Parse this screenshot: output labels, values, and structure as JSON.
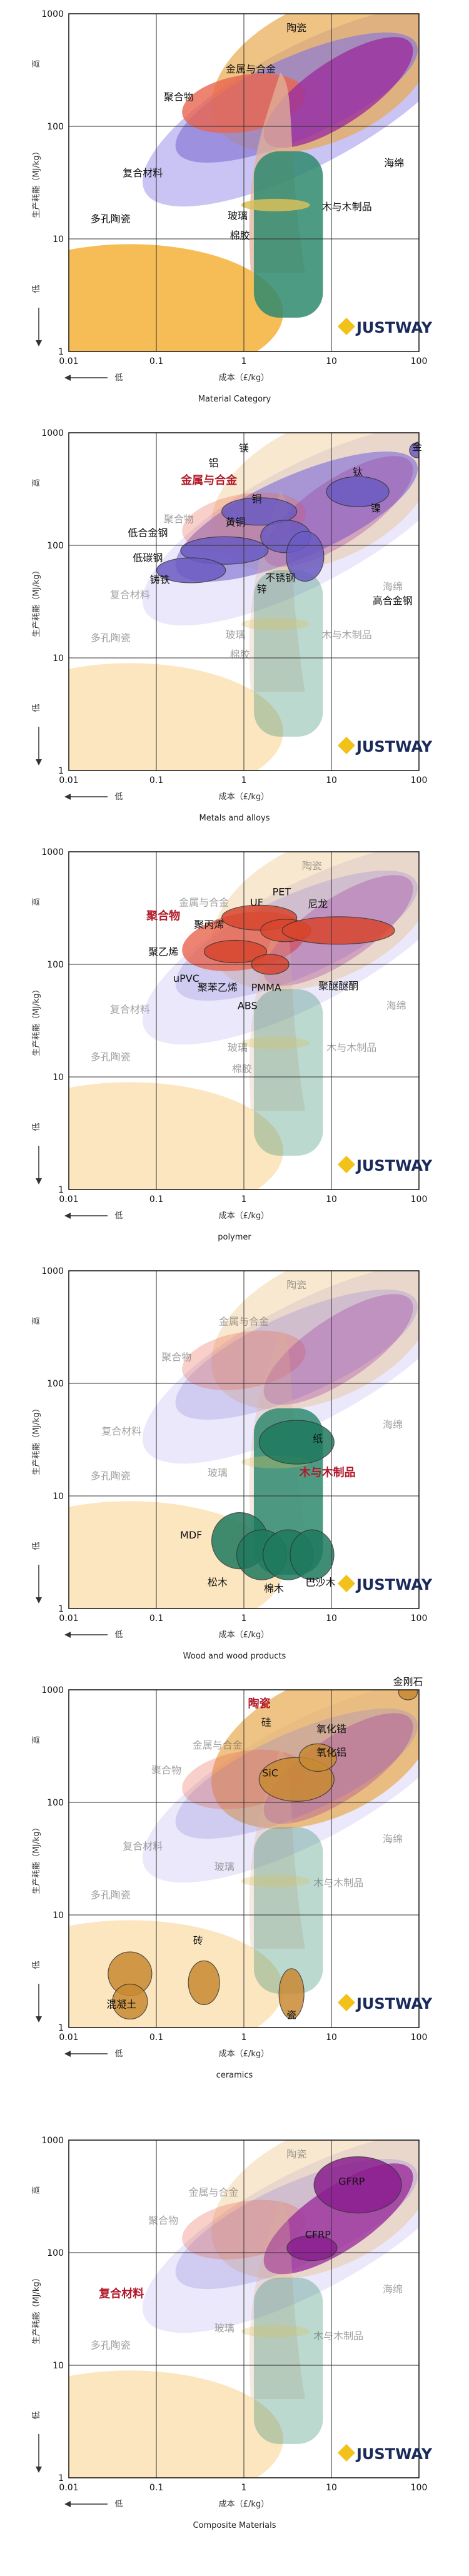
{
  "common": {
    "y_ticks": [
      "1000",
      "100",
      "10",
      "1"
    ],
    "x_ticks": [
      "0.01",
      "0.1",
      "1",
      "10",
      "100"
    ],
    "y_label": "生产耗能（MJ/kg）",
    "x_label": "成本（£/kg）",
    "high": "高",
    "low": "低",
    "brand": "JUSTWAY"
  },
  "colors": {
    "porous": "#f5b13a",
    "metal": "#8a7ad6",
    "polymer": "#e8654f",
    "ceramic": "#e8a94f",
    "composite": "#9b2f9e",
    "wood": "#2f8a6e",
    "rubber": "#e0b39a",
    "glass": "#d9c05a"
  },
  "chart_data": [
    {
      "type": "scatter",
      "caption": "Material Category",
      "highlight": "",
      "xlim": [
        0.01,
        100
      ],
      "ylim": [
        1,
        1000
      ],
      "x_scale": "log",
      "y_scale": "log",
      "labels": [
        {
          "text": "陶瓷",
          "x": 4,
          "y": 700
        },
        {
          "text": "金属与合金",
          "x": 1.2,
          "y": 300
        },
        {
          "text": "聚合物",
          "x": 0.18,
          "y": 170
        },
        {
          "text": "复合材料",
          "x": 0.07,
          "y": 36
        },
        {
          "text": "海绵",
          "x": 52,
          "y": 44
        },
        {
          "text": "玻璃",
          "x": 0.85,
          "y": 15
        },
        {
          "text": "木与木制品",
          "x": 15,
          "y": 18
        },
        {
          "text": "棉胶",
          "x": 0.9,
          "y": 10
        },
        {
          "text": "多孔陶瓷",
          "x": 0.03,
          "y": 14
        }
      ]
    },
    {
      "type": "scatter",
      "caption": "Metals and alloys",
      "highlight": "金属与合金",
      "xlim": [
        0.01,
        100
      ],
      "ylim": [
        1,
        1000
      ],
      "x_scale": "log",
      "y_scale": "log",
      "labels": [
        {
          "text": "金",
          "x": 95,
          "y": 700
        },
        {
          "text": "镁",
          "x": 1,
          "y": 680
        },
        {
          "text": "铝",
          "x": 0.45,
          "y": 500
        },
        {
          "text": "钛",
          "x": 20,
          "y": 420
        },
        {
          "text": "金属与合金",
          "x": 0.4,
          "y": 350
        },
        {
          "text": "铜",
          "x": 1.4,
          "y": 240
        },
        {
          "text": "镍",
          "x": 32,
          "y": 200
        },
        {
          "text": "黄铜",
          "x": 0.8,
          "y": 150
        },
        {
          "text": "低合金钢",
          "x": 0.08,
          "y": 120
        },
        {
          "text": "低碳钢",
          "x": 0.08,
          "y": 72
        },
        {
          "text": "铸铁",
          "x": 0.11,
          "y": 46
        },
        {
          "text": "不锈钢",
          "x": 2.6,
          "y": 48
        },
        {
          "text": "锌",
          "x": 1.6,
          "y": 38
        },
        {
          "text": "海绵",
          "x": 50,
          "y": 40
        },
        {
          "text": "高合金钢",
          "x": 50,
          "y": 30
        },
        {
          "text": "玻璃",
          "x": 0.8,
          "y": 15
        },
        {
          "text": "木与木制品",
          "x": 15,
          "y": 15
        },
        {
          "text": "棉胶",
          "x": 0.9,
          "y": 10
        },
        {
          "text": "多孔陶瓷",
          "x": 0.03,
          "y": 14
        },
        {
          "text": "复合材料",
          "x": 0.05,
          "y": 34
        },
        {
          "text": "聚合物",
          "x": 0.18,
          "y": 160
        }
      ]
    },
    {
      "type": "scatter",
      "caption": "polymer",
      "highlight": "聚合物",
      "xlim": [
        0.01,
        100
      ],
      "ylim": [
        1,
        1000
      ],
      "x_scale": "log",
      "y_scale": "log",
      "labels": [
        {
          "text": "PET",
          "x": 2.7,
          "y": 410
        },
        {
          "text": "金属与合金",
          "x": 0.35,
          "y": 330
        },
        {
          "text": "UF",
          "x": 1.4,
          "y": 330
        },
        {
          "text": "尼龙",
          "x": 7,
          "y": 320
        },
        {
          "text": "聚合物",
          "x": 0.12,
          "y": 250
        },
        {
          "text": "聚丙烯",
          "x": 0.4,
          "y": 210
        },
        {
          "text": "聚乙烯",
          "x": 0.12,
          "y": 120
        },
        {
          "text": "uPVC",
          "x": 0.22,
          "y": 70
        },
        {
          "text": "聚苯乙烯",
          "x": 0.5,
          "y": 58
        },
        {
          "text": "PMMA",
          "x": 1.8,
          "y": 58
        },
        {
          "text": "ABS",
          "x": 1.1,
          "y": 40
        },
        {
          "text": "聚醚醚酮",
          "x": 12,
          "y": 60
        },
        {
          "text": "海绵",
          "x": 55,
          "y": 40
        },
        {
          "text": "玻璃",
          "x": 0.85,
          "y": 17
        },
        {
          "text": "木与木制品",
          "x": 17,
          "y": 17
        },
        {
          "text": "棉胶",
          "x": 0.95,
          "y": 11
        },
        {
          "text": "多孔陶瓷",
          "x": 0.03,
          "y": 14
        },
        {
          "text": "复合材料",
          "x": 0.05,
          "y": 37
        },
        {
          "text": "陶瓷",
          "x": 6,
          "y": 700
        }
      ]
    },
    {
      "type": "scatter",
      "caption": "Wood and wood products",
      "highlight": "木与木制品",
      "xlim": [
        0.01,
        100
      ],
      "ylim": [
        1,
        1000
      ],
      "x_scale": "log",
      "y_scale": "log",
      "labels": [
        {
          "text": "陶瓷",
          "x": 4,
          "y": 700
        },
        {
          "text": "金属与合金",
          "x": 1,
          "y": 330
        },
        {
          "text": "聚合物",
          "x": 0.17,
          "y": 160
        },
        {
          "text": "复合材料",
          "x": 0.04,
          "y": 35
        },
        {
          "text": "海绵",
          "x": 50,
          "y": 40
        },
        {
          "text": "纸",
          "x": 7,
          "y": 30
        },
        {
          "text": "木与木制品",
          "x": 9,
          "y": 15
        },
        {
          "text": "玻璃",
          "x": 0.5,
          "y": 15
        },
        {
          "text": "多孔陶瓷",
          "x": 0.03,
          "y": 14
        },
        {
          "text": "MDF",
          "x": 0.25,
          "y": 4.2
        },
        {
          "text": "松木",
          "x": 0.5,
          "y": 1.6
        },
        {
          "text": "棉木",
          "x": 2.2,
          "y": 1.4
        },
        {
          "text": "巴沙木",
          "x": 7.5,
          "y": 1.6
        }
      ]
    },
    {
      "type": "scatter",
      "caption": "ceramics",
      "highlight": "陶瓷",
      "xlim": [
        0.01,
        100
      ],
      "ylim": [
        1,
        1000
      ],
      "x_scale": "log",
      "y_scale": "log",
      "labels": [
        {
          "text": "金刚石",
          "x": 75,
          "y": 1100
        },
        {
          "text": "陶瓷",
          "x": 1.5,
          "y": 700
        },
        {
          "text": "硅",
          "x": 1.8,
          "y": 480
        },
        {
          "text": "氧化锆",
          "x": 10,
          "y": 420
        },
        {
          "text": "金属与合金",
          "x": 0.5,
          "y": 300
        },
        {
          "text": "氧化铝",
          "x": 10,
          "y": 260
        },
        {
          "text": "聚合物",
          "x": 0.13,
          "y": 180
        },
        {
          "text": "SiC",
          "x": 2,
          "y": 170
        },
        {
          "text": "海绵",
          "x": 50,
          "y": 44
        },
        {
          "text": "复合材料",
          "x": 0.07,
          "y": 38
        },
        {
          "text": "玻璃",
          "x": 0.6,
          "y": 25
        },
        {
          "text": "木与木制品",
          "x": 12,
          "y": 18
        },
        {
          "text": "多孔陶瓷",
          "x": 0.03,
          "y": 14
        },
        {
          "text": "砖",
          "x": 0.3,
          "y": 5.5
        },
        {
          "text": "混凝土",
          "x": 0.04,
          "y": 1.5
        },
        {
          "text": "瓷",
          "x": 3.5,
          "y": 1.2
        }
      ]
    },
    {
      "type": "scatter",
      "caption": "Composite Materials",
      "highlight": "复合材料",
      "xlim": [
        0.01,
        100
      ],
      "ylim": [
        1,
        1000
      ],
      "x_scale": "log",
      "y_scale": "log",
      "labels": [
        {
          "text": "陶瓷",
          "x": 4,
          "y": 700
        },
        {
          "text": "金属与合金",
          "x": 0.45,
          "y": 320
        },
        {
          "text": "GFRP",
          "x": 17,
          "y": 400
        },
        {
          "text": "聚合物",
          "x": 0.12,
          "y": 180
        },
        {
          "text": "CFRP",
          "x": 7,
          "y": 135
        },
        {
          "text": "复合材料",
          "x": 0.04,
          "y": 40
        },
        {
          "text": "海绵",
          "x": 50,
          "y": 44
        },
        {
          "text": "玻璃",
          "x": 0.6,
          "y": 20
        },
        {
          "text": "木与木制品",
          "x": 12,
          "y": 17
        },
        {
          "text": "多孔陶瓷",
          "x": 0.03,
          "y": 14
        }
      ]
    }
  ]
}
